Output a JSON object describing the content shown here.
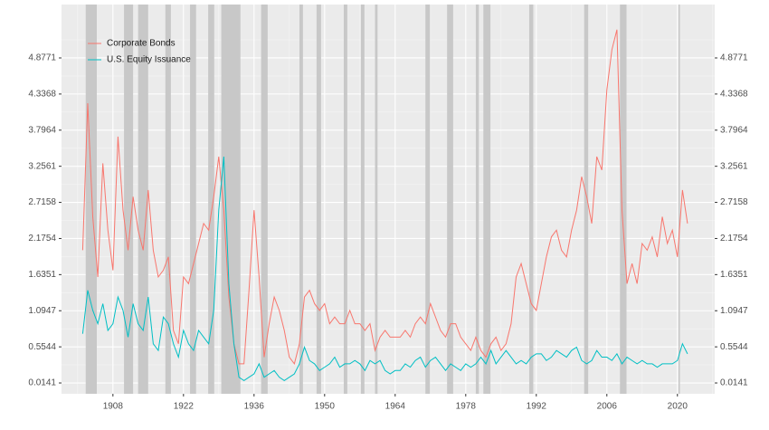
{
  "chart_data": {
    "type": "line",
    "x": [
      1902,
      1903,
      1904,
      1905,
      1906,
      1907,
      1908,
      1909,
      1910,
      1911,
      1912,
      1913,
      1914,
      1915,
      1916,
      1917,
      1918,
      1919,
      1920,
      1921,
      1922,
      1923,
      1924,
      1925,
      1926,
      1927,
      1928,
      1929,
      1930,
      1931,
      1932,
      1933,
      1934,
      1935,
      1936,
      1937,
      1938,
      1939,
      1940,
      1941,
      1942,
      1943,
      1944,
      1945,
      1946,
      1947,
      1948,
      1949,
      1950,
      1951,
      1952,
      1953,
      1954,
      1955,
      1956,
      1957,
      1958,
      1959,
      1960,
      1961,
      1962,
      1963,
      1964,
      1965,
      1966,
      1967,
      1968,
      1969,
      1970,
      1971,
      1972,
      1973,
      1974,
      1975,
      1976,
      1977,
      1978,
      1979,
      1980,
      1981,
      1982,
      1983,
      1984,
      1985,
      1986,
      1987,
      1988,
      1989,
      1990,
      1991,
      1992,
      1993,
      1994,
      1995,
      1996,
      1997,
      1998,
      1999,
      2000,
      2001,
      2002,
      2003,
      2004,
      2005,
      2006,
      2007,
      2008,
      2009,
      2010,
      2011,
      2012,
      2013,
      2014,
      2015,
      2016,
      2017,
      2018,
      2019,
      2020,
      2021,
      2022
    ],
    "series": [
      {
        "name": "Corporate Bonds",
        "color": "#F8766D",
        "values": [
          2.0,
          4.2,
          2.5,
          1.6,
          3.3,
          2.3,
          1.7,
          3.7,
          2.6,
          2.0,
          2.8,
          2.3,
          2.0,
          2.9,
          2.0,
          1.6,
          1.7,
          1.9,
          0.8,
          0.6,
          1.6,
          1.5,
          1.8,
          2.1,
          2.4,
          2.3,
          2.8,
          3.4,
          2.6,
          1.3,
          0.6,
          0.3,
          0.3,
          1.4,
          2.6,
          1.6,
          0.4,
          0.9,
          1.3,
          1.1,
          0.8,
          0.4,
          0.3,
          0.6,
          1.3,
          1.4,
          1.2,
          1.1,
          1.2,
          0.9,
          1.0,
          0.9,
          0.9,
          1.1,
          0.9,
          0.9,
          0.8,
          0.9,
          0.5,
          0.7,
          0.8,
          0.7,
          0.7,
          0.7,
          0.8,
          0.7,
          0.9,
          1.0,
          0.9,
          1.2,
          1.0,
          0.8,
          0.7,
          0.9,
          0.9,
          0.7,
          0.6,
          0.5,
          0.7,
          0.5,
          0.4,
          0.6,
          0.7,
          0.5,
          0.6,
          0.9,
          1.6,
          1.8,
          1.5,
          1.2,
          1.1,
          1.5,
          1.9,
          2.2,
          2.3,
          2.0,
          1.9,
          2.3,
          2.6,
          3.1,
          2.8,
          2.4,
          3.4,
          3.2,
          4.4,
          5.0,
          5.3,
          2.6,
          1.5,
          1.8,
          1.5,
          2.1,
          2.0,
          2.2,
          1.9,
          2.5,
          2.1,
          2.3,
          1.9,
          2.9,
          2.4
        ]
      },
      {
        "name": "U.S. Equity Issuance",
        "color": "#00BFC4",
        "values": [
          0.75,
          1.4,
          1.1,
          0.9,
          1.2,
          0.8,
          0.9,
          1.3,
          1.1,
          0.7,
          1.2,
          0.9,
          0.8,
          1.3,
          0.6,
          0.5,
          1.0,
          0.9,
          0.6,
          0.4,
          0.8,
          0.6,
          0.5,
          0.8,
          0.7,
          0.6,
          1.1,
          2.6,
          3.4,
          1.5,
          0.6,
          0.1,
          0.05,
          0.1,
          0.15,
          0.3,
          0.1,
          0.15,
          0.2,
          0.1,
          0.05,
          0.1,
          0.15,
          0.3,
          0.55,
          0.35,
          0.3,
          0.2,
          0.25,
          0.3,
          0.4,
          0.25,
          0.3,
          0.3,
          0.35,
          0.3,
          0.2,
          0.35,
          0.3,
          0.35,
          0.2,
          0.15,
          0.2,
          0.2,
          0.3,
          0.25,
          0.35,
          0.4,
          0.25,
          0.35,
          0.4,
          0.3,
          0.2,
          0.3,
          0.25,
          0.2,
          0.3,
          0.25,
          0.3,
          0.4,
          0.3,
          0.5,
          0.3,
          0.4,
          0.5,
          0.4,
          0.3,
          0.35,
          0.3,
          0.4,
          0.45,
          0.45,
          0.35,
          0.4,
          0.5,
          0.45,
          0.4,
          0.5,
          0.55,
          0.35,
          0.3,
          0.35,
          0.5,
          0.4,
          0.4,
          0.35,
          0.45,
          0.3,
          0.4,
          0.35,
          0.3,
          0.35,
          0.3,
          0.3,
          0.25,
          0.3,
          0.3,
          0.3,
          0.35,
          0.6,
          0.45
        ]
      }
    ],
    "recessions": [
      [
        1902.6,
        1904.8
      ],
      [
        1910.2,
        1912
      ],
      [
        1913,
        1915
      ],
      [
        1918.4,
        1919.5
      ],
      [
        1923.3,
        1924.5
      ],
      [
        1926.9,
        1928.1
      ],
      [
        1929.5,
        1933.3
      ],
      [
        1937.4,
        1938.7
      ],
      [
        1945,
        1945.7
      ],
      [
        1948.4,
        1949.3
      ],
      [
        1953.8,
        1954.5
      ],
      [
        1957.2,
        1957.9
      ],
      [
        1960,
        1960.5
      ],
      [
        1970,
        1970.9
      ],
      [
        1974.3,
        1975.5
      ],
      [
        1980,
        1980.6
      ],
      [
        1981.5,
        1982.9
      ],
      [
        1990.6,
        1991.4
      ],
      [
        2001.5,
        2002.3
      ],
      [
        2008.6,
        2009.9
      ],
      [
        2020.2,
        2020.5
      ]
    ],
    "recession_color": "#c8c8c8",
    "xlim": [
      1897.8,
      2027.4
    ],
    "xticks": [
      1908,
      1922,
      1936,
      1950,
      1964,
      1978,
      1992,
      2006,
      2020
    ],
    "ylim": [
      -0.148,
      5.676
    ],
    "yticks": [
      0.0141,
      0.5544,
      1.0947,
      1.6351,
      2.1754,
      2.7158,
      3.2561,
      3.7964,
      4.3368,
      4.8771
    ],
    "y2lim": [
      -0.148,
      5.676
    ],
    "y2ticks": [
      0.0141,
      0.5544,
      1.0947,
      1.6351,
      2.1754,
      2.7158,
      3.2561,
      3.7964,
      4.3368,
      4.8771
    ],
    "grid": true,
    "legend": "top-left"
  }
}
